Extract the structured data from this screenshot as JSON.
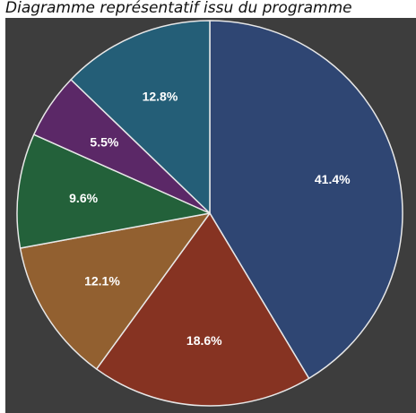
{
  "chart_data": {
    "type": "pie",
    "title": "Diagramme représentatif issu du programme",
    "slices": [
      {
        "value": 41.4,
        "label": "41.4%",
        "color": "#2f4673"
      },
      {
        "value": 18.6,
        "label": "18.6%",
        "color": "#863322"
      },
      {
        "value": 12.1,
        "label": "12.1%",
        "color": "#926030"
      },
      {
        "value": 9.6,
        "label": "9.6%",
        "color": "#23613a"
      },
      {
        "value": 5.5,
        "label": "5.5%",
        "color": "#5b2867"
      },
      {
        "value": 12.8,
        "label": "12.8%",
        "color": "#245e77"
      }
    ],
    "start_angle": "12 o'clock",
    "direction": "clockwise",
    "slice_border_color": "#e8e8e8",
    "background_color": "#3d3d3d",
    "legend": "none"
  }
}
